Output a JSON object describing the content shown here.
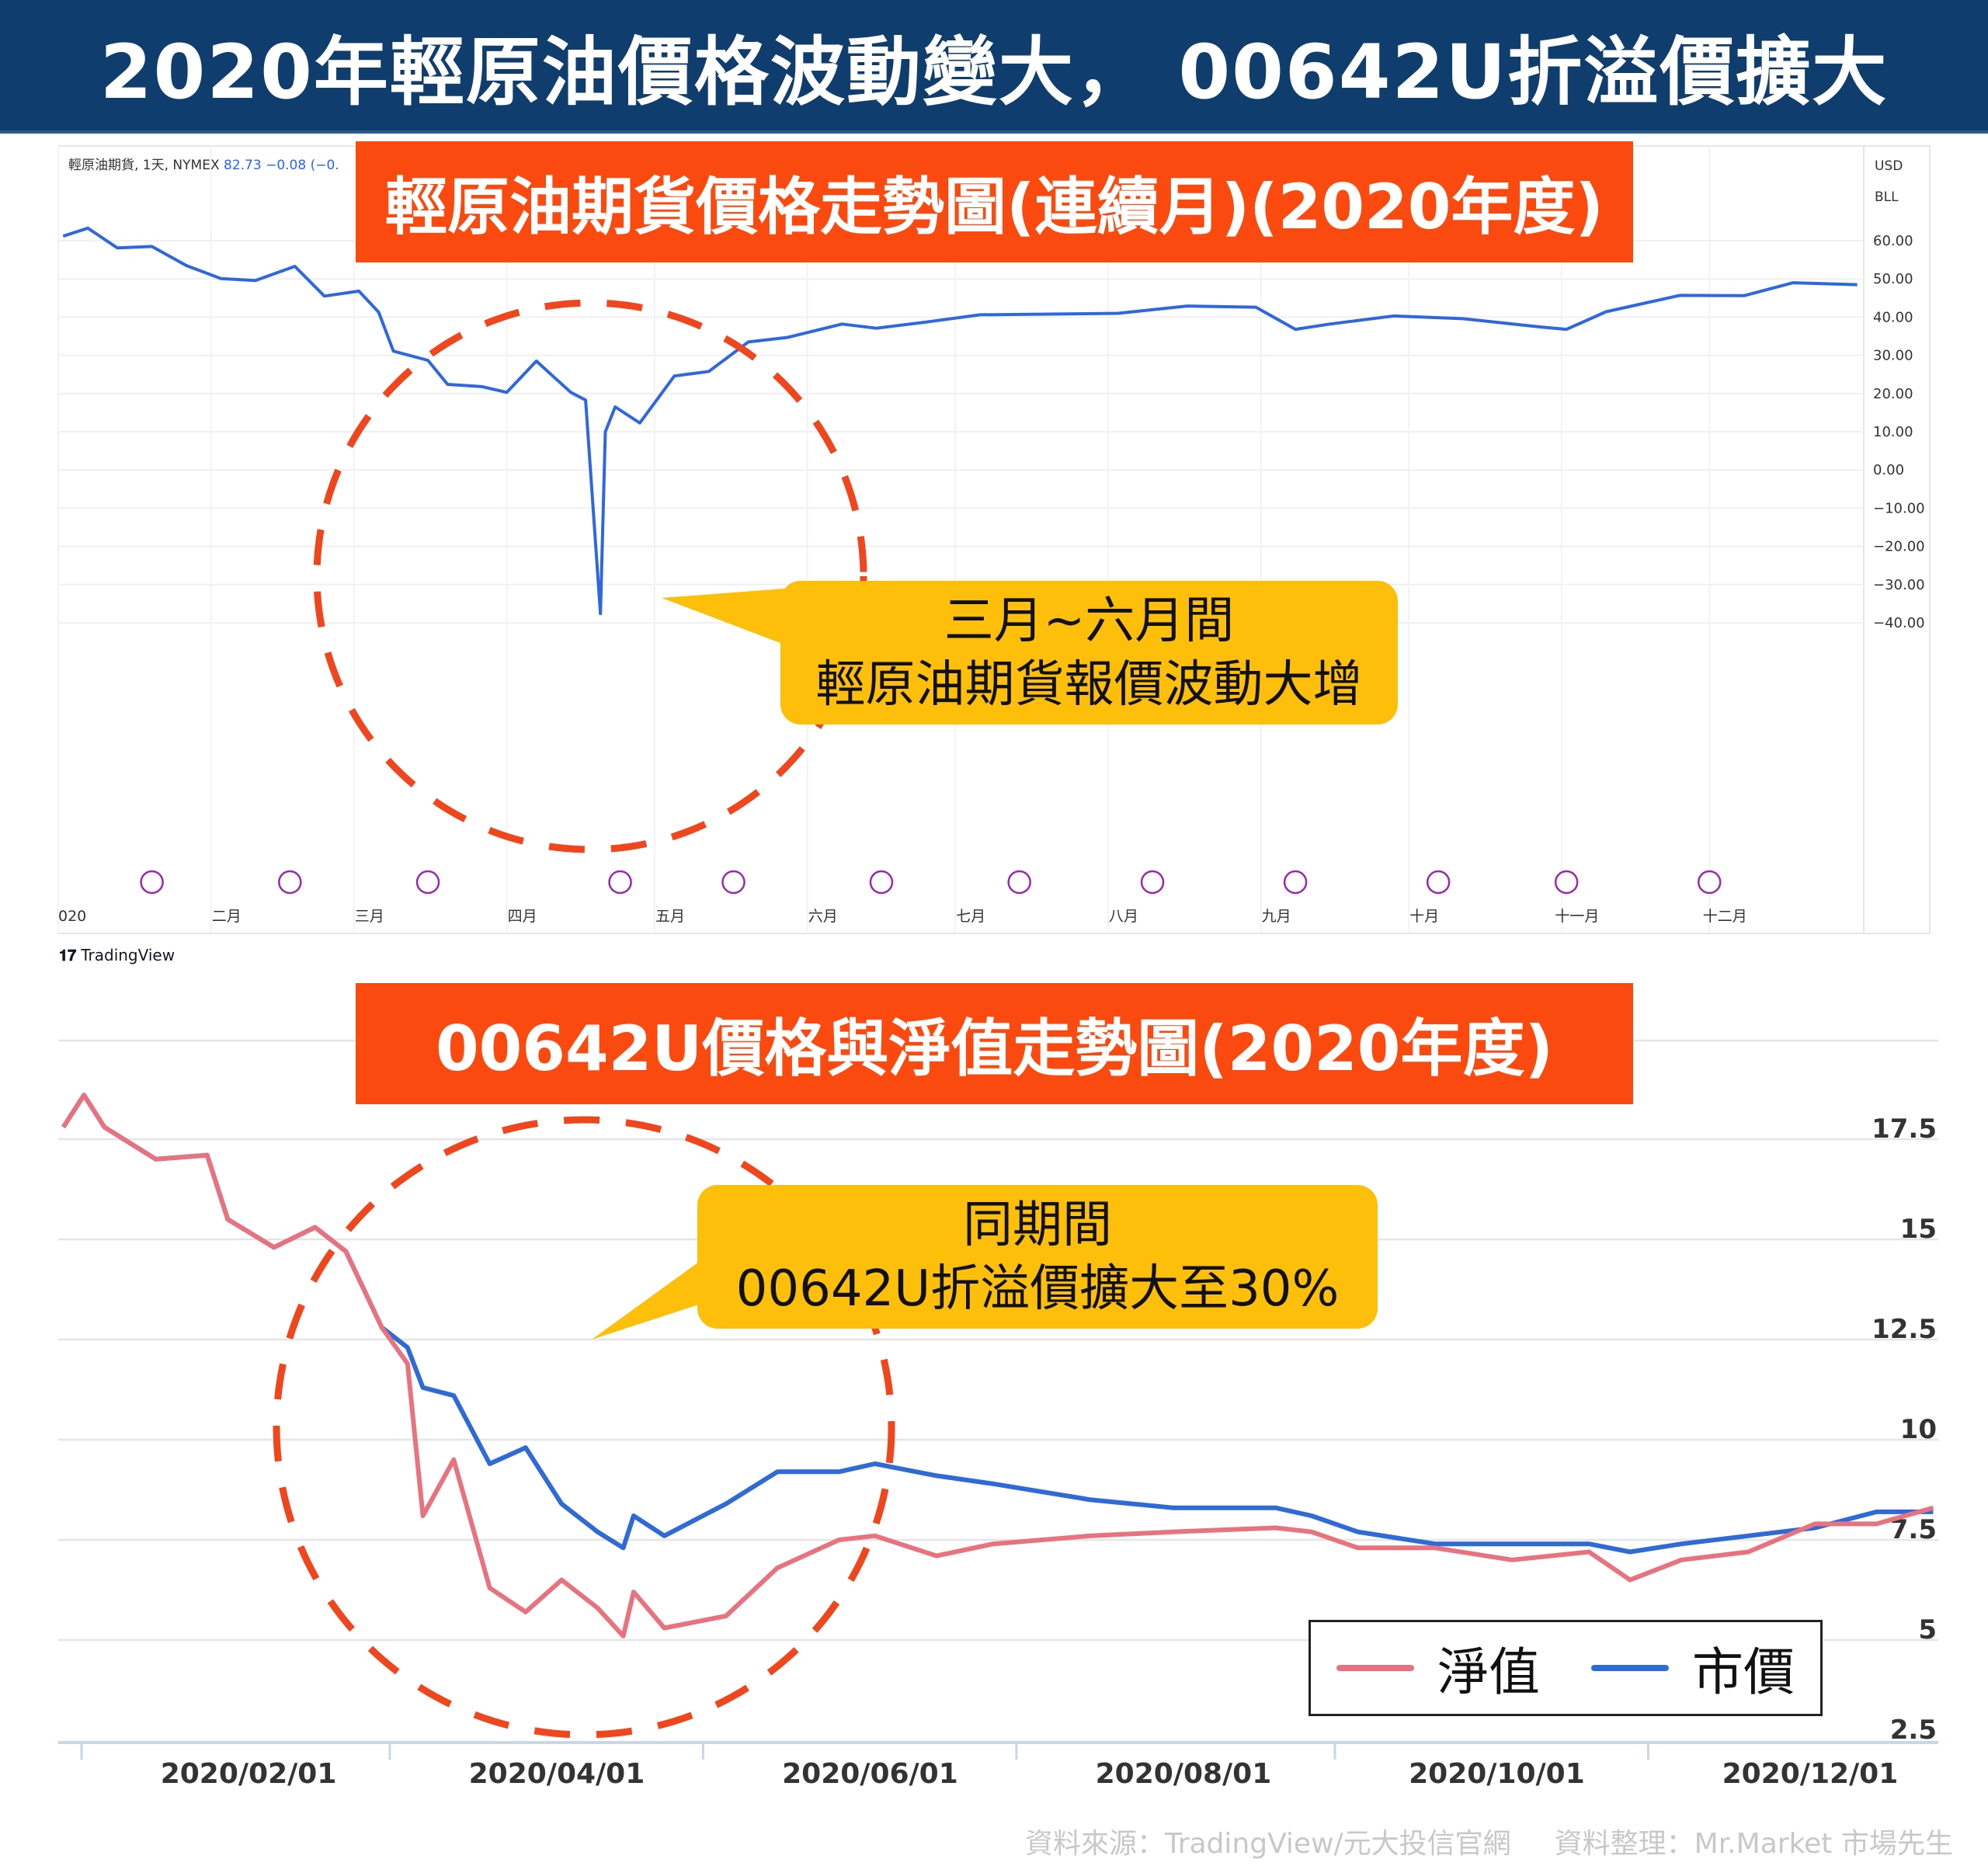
{
  "page": {
    "title": "2020年輕原油價格波動變大， 00642U折溢價擴大",
    "source_left": "資料來源：TradingView/元大投信官網",
    "source_right": "資料整理：Mr.Market 市場先生"
  },
  "top_chart": {
    "banner": "輕原油期貨價格走勢圖(連續月)(2020年度)",
    "meta_symbol": "輕原油期貨, 1天, NYMEX",
    "meta_values": "82.73 −0.08 (−0.",
    "currency": "USD",
    "unit": "BLL",
    "tv_logo": "TradingView",
    "callout_line1": "三月~六月間",
    "callout_line2": "輕原油期貨報價波動大增"
  },
  "bottom_chart": {
    "banner": "00642U價格與淨值走勢圖(2020年度)",
    "callout_line1": "同期間",
    "callout_line2": "00642U折溢價擴大至30%",
    "legend_nav": "淨值",
    "legend_price": "市價"
  },
  "colors": {
    "title_bg": "#0f3d6e",
    "banner_bg": "#fa4a0f",
    "callout_bg": "#fdbf0a",
    "circle": "#f0461e",
    "oil_line": "#2f67e0",
    "nav_line": "#e8737f",
    "price_line": "#2e6bd6"
  },
  "chart_data": [
    {
      "type": "line",
      "title": "輕原油期貨價格走勢圖(連續月)(2020年度)",
      "ylabel": "USD / BLL",
      "ylim": [
        -45,
        65
      ],
      "yticks": [
        "60.00",
        "50.00",
        "40.00",
        "30.00",
        "20.00",
        "10.00",
        "0.00",
        "−10.00",
        "−20.00",
        "−30.00",
        "−40.00"
      ],
      "xticks": [
        "020",
        "二月",
        "三月",
        "四月",
        "五月",
        "六月",
        "七月",
        "八月",
        "九月",
        "十月",
        "十一月",
        "十二月"
      ],
      "grid": true,
      "series": [
        {
          "x": [
            "2020-01-02",
            "2020-01-07",
            "2020-01-13",
            "2020-01-20",
            "2020-01-27",
            "2020-02-03",
            "2020-02-10",
            "2020-02-18",
            "2020-02-24",
            "2020-03-02",
            "2020-03-06",
            "2020-03-09",
            "2020-03-16",
            "2020-03-20",
            "2020-03-27",
            "2020-04-01",
            "2020-04-07",
            "2020-04-14",
            "2020-04-17",
            "2020-04-20",
            "2020-04-21",
            "2020-04-23",
            "2020-04-28",
            "2020-05-05",
            "2020-05-12",
            "2020-05-20",
            "2020-05-28",
            "2020-06-08",
            "2020-06-15",
            "2020-06-25",
            "2020-07-06",
            "2020-07-20",
            "2020-08-03",
            "2020-08-17",
            "2020-08-31",
            "2020-09-08",
            "2020-09-15",
            "2020-09-28",
            "2020-10-12",
            "2020-10-28",
            "2020-11-02",
            "2020-11-10",
            "2020-11-25",
            "2020-12-08",
            "2020-12-18",
            "2020-12-31"
          ],
          "y": [
            61.2,
            63.3,
            58.1,
            58.5,
            53.5,
            50.1,
            49.6,
            53.3,
            45.5,
            46.8,
            41.3,
            31.1,
            28.7,
            22.4,
            21.8,
            20.3,
            28.5,
            20.3,
            18.3,
            -37.6,
            10.0,
            16.5,
            12.3,
            24.6,
            25.8,
            33.5,
            34.7,
            38.2,
            37.1,
            38.7,
            40.6,
            40.8,
            41.0,
            42.9,
            42.6,
            36.8,
            38.2,
            40.3,
            39.6,
            37.4,
            36.8,
            41.4,
            45.7,
            45.6,
            49.0,
            48.5
          ]
        }
      ]
    },
    {
      "type": "line",
      "title": "00642U價格與淨值走勢圖(2020年度)",
      "ylim": [
        2.5,
        17.5
      ],
      "yticks": [
        "17.5",
        "15",
        "12.5",
        "10",
        "7.5",
        "5",
        "2.5"
      ],
      "xticks": [
        "2020/02/01",
        "2020/04/01",
        "2020/06/01",
        "2020/08/01",
        "2020/10/01",
        "2020/12/01"
      ],
      "grid": true,
      "legend": "bottom-right",
      "series": [
        {
          "name": "淨值",
          "x": [
            "2020-01-02",
            "2020-01-06",
            "2020-01-10",
            "2020-01-20",
            "2020-01-30",
            "2020-02-03",
            "2020-02-12",
            "2020-02-20",
            "2020-02-26",
            "2020-03-04",
            "2020-03-09",
            "2020-03-12",
            "2020-03-18",
            "2020-03-25",
            "2020-04-01",
            "2020-04-08",
            "2020-04-15",
            "2020-04-20",
            "2020-04-22",
            "2020-04-28",
            "2020-05-10",
            "2020-05-20",
            "2020-06-01",
            "2020-06-08",
            "2020-06-20",
            "2020-07-01",
            "2020-07-20",
            "2020-08-05",
            "2020-08-25",
            "2020-09-01",
            "2020-09-10",
            "2020-09-25",
            "2020-10-10",
            "2020-10-25",
            "2020-11-02",
            "2020-11-12",
            "2020-11-25",
            "2020-12-08",
            "2020-12-20",
            "2020-12-31"
          ],
          "y": [
            17.8,
            18.6,
            17.8,
            17.0,
            17.1,
            15.5,
            14.8,
            15.3,
            14.7,
            12.8,
            11.9,
            8.1,
            9.5,
            6.3,
            5.7,
            6.5,
            5.8,
            5.1,
            6.2,
            5.3,
            5.6,
            6.8,
            7.5,
            7.6,
            7.1,
            7.4,
            7.6,
            7.7,
            7.8,
            7.7,
            7.3,
            7.3,
            7.0,
            7.2,
            6.5,
            7.0,
            7.2,
            7.9,
            7.9,
            8.3
          ]
        },
        {
          "name": "市價",
          "x": [
            "2020-01-02",
            "2020-01-06",
            "2020-01-10",
            "2020-01-20",
            "2020-01-30",
            "2020-02-03",
            "2020-02-12",
            "2020-02-20",
            "2020-02-26",
            "2020-03-04",
            "2020-03-09",
            "2020-03-12",
            "2020-03-18",
            "2020-03-25",
            "2020-04-01",
            "2020-04-08",
            "2020-04-15",
            "2020-04-20",
            "2020-04-22",
            "2020-04-28",
            "2020-05-10",
            "2020-05-20",
            "2020-06-01",
            "2020-06-08",
            "2020-06-20",
            "2020-07-01",
            "2020-07-20",
            "2020-08-05",
            "2020-08-25",
            "2020-09-01",
            "2020-09-10",
            "2020-09-25",
            "2020-10-10",
            "2020-10-25",
            "2020-11-02",
            "2020-11-12",
            "2020-11-25",
            "2020-12-08",
            "2020-12-20",
            "2020-12-31"
          ],
          "y": [
            17.8,
            18.6,
            17.8,
            17.0,
            17.1,
            15.5,
            14.8,
            15.3,
            14.7,
            12.8,
            12.3,
            11.3,
            11.1,
            9.4,
            9.8,
            8.4,
            7.7,
            7.3,
            8.1,
            7.6,
            8.4,
            9.2,
            9.2,
            9.4,
            9.1,
            8.9,
            8.5,
            8.3,
            8.3,
            8.1,
            7.7,
            7.4,
            7.4,
            7.4,
            7.2,
            7.4,
            7.6,
            7.8,
            8.2,
            8.2
          ]
        }
      ]
    }
  ]
}
